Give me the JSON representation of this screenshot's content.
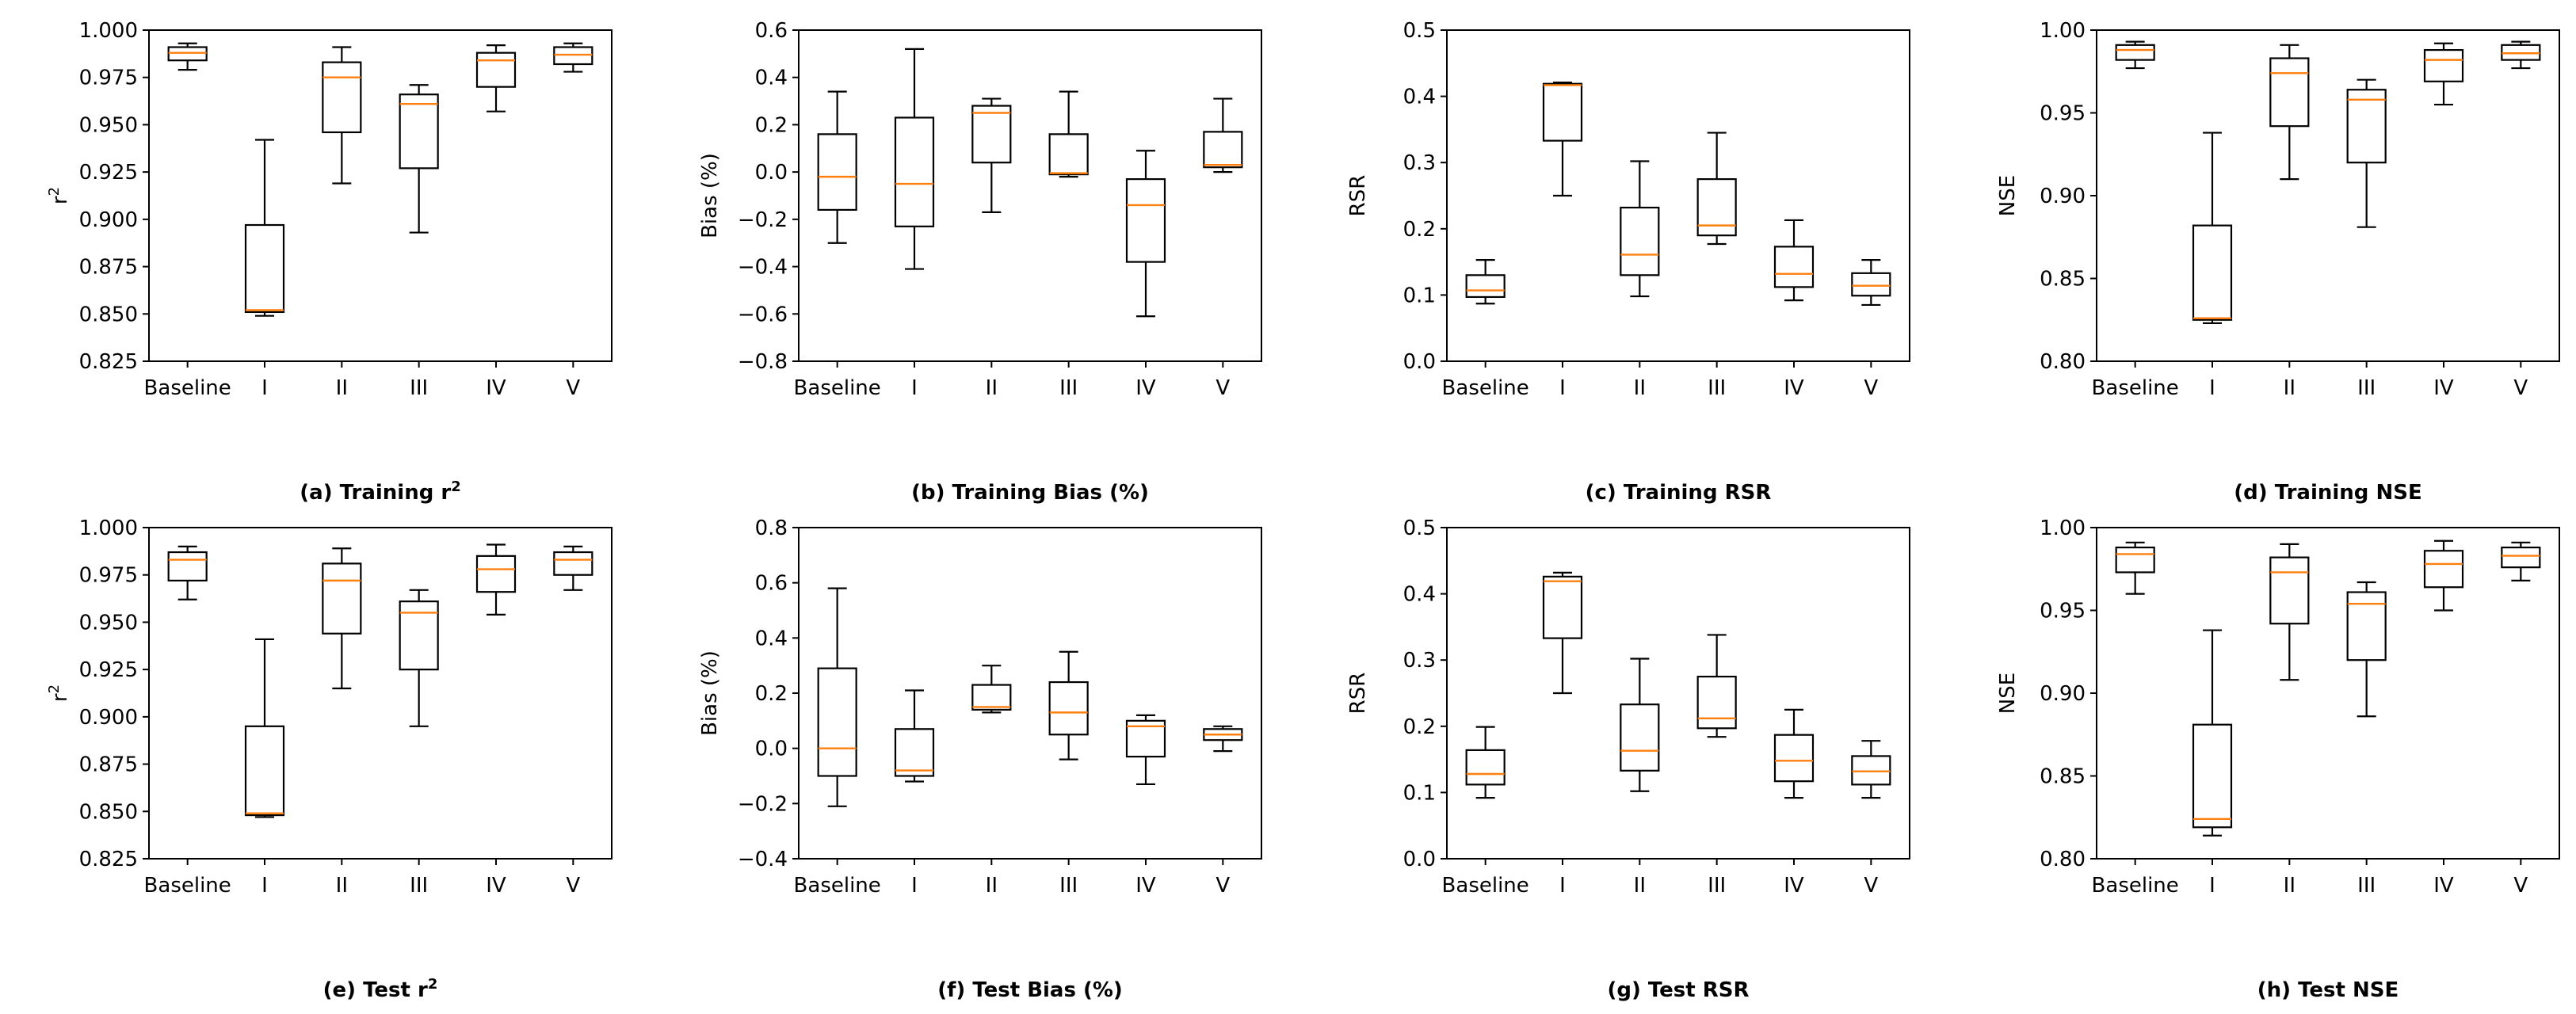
{
  "chart_data": [
    {
      "type": "box",
      "title": "(a) Training r",
      "title_sup": "2",
      "ylabel": "r",
      "ylabel_sup": "2",
      "ylim": [
        0.825,
        1.0
      ],
      "yticks": [
        0.825,
        0.85,
        0.875,
        0.9,
        0.925,
        0.95,
        0.975,
        1.0
      ],
      "ytick_labels": [
        "0.825",
        "0.850",
        "0.875",
        "0.900",
        "0.925",
        "0.950",
        "0.975",
        "1.000"
      ],
      "categories": [
        "Baseline",
        "I",
        "II",
        "III",
        "IV",
        "V"
      ],
      "boxes": [
        {
          "whislo": 0.979,
          "q1": 0.984,
          "med": 0.988,
          "q3": 0.991,
          "whishi": 0.993
        },
        {
          "whislo": 0.849,
          "q1": 0.851,
          "med": 0.852,
          "q3": 0.897,
          "whishi": 0.942
        },
        {
          "whislo": 0.919,
          "q1": 0.946,
          "med": 0.975,
          "q3": 0.983,
          "whishi": 0.991
        },
        {
          "whislo": 0.893,
          "q1": 0.927,
          "med": 0.961,
          "q3": 0.966,
          "whishi": 0.971
        },
        {
          "whislo": 0.957,
          "q1": 0.97,
          "med": 0.984,
          "q3": 0.988,
          "whishi": 0.992
        },
        {
          "whislo": 0.978,
          "q1": 0.982,
          "med": 0.987,
          "q3": 0.991,
          "whishi": 0.993
        }
      ]
    },
    {
      "type": "box",
      "title": "(b) Training Bias (%)",
      "ylabel": "Bias (%)",
      "ylim": [
        -0.8,
        0.6
      ],
      "yticks": [
        -0.8,
        -0.6,
        -0.4,
        -0.2,
        0.0,
        0.2,
        0.4,
        0.6
      ],
      "ytick_labels": [
        "−0.8",
        "−0.6",
        "−0.4",
        "−0.2",
        "0.0",
        "0.2",
        "0.4",
        "0.6"
      ],
      "categories": [
        "Baseline",
        "I",
        "II",
        "III",
        "IV",
        "V"
      ],
      "boxes": [
        {
          "whislo": -0.3,
          "q1": -0.16,
          "med": -0.02,
          "q3": 0.16,
          "whishi": 0.34
        },
        {
          "whislo": -0.41,
          "q1": -0.23,
          "med": -0.05,
          "q3": 0.23,
          "whishi": 0.52
        },
        {
          "whislo": -0.17,
          "q1": 0.04,
          "med": 0.25,
          "q3": 0.28,
          "whishi": 0.31
        },
        {
          "whislo": -0.02,
          "q1": -0.01,
          "med": -0.005,
          "q3": 0.16,
          "whishi": 0.34
        },
        {
          "whislo": -0.61,
          "q1": -0.38,
          "med": -0.14,
          "q3": -0.03,
          "whishi": 0.09
        },
        {
          "whislo": 0.0,
          "q1": 0.02,
          "med": 0.03,
          "q3": 0.17,
          "whishi": 0.31
        }
      ]
    },
    {
      "type": "box",
      "title": "(c) Training RSR",
      "ylabel": "RSR",
      "ylim": [
        0.0,
        0.5
      ],
      "yticks": [
        0.0,
        0.1,
        0.2,
        0.3,
        0.4,
        0.5
      ],
      "ytick_labels": [
        "0.0",
        "0.1",
        "0.2",
        "0.3",
        "0.4",
        "0.5"
      ],
      "categories": [
        "Baseline",
        "I",
        "II",
        "III",
        "IV",
        "V"
      ],
      "boxes": [
        {
          "whislo": 0.087,
          "q1": 0.097,
          "med": 0.107,
          "q3": 0.13,
          "whishi": 0.153
        },
        {
          "whislo": 0.25,
          "q1": 0.333,
          "med": 0.417,
          "q3": 0.419,
          "whishi": 0.421
        },
        {
          "whislo": 0.098,
          "q1": 0.13,
          "med": 0.161,
          "q3": 0.232,
          "whishi": 0.302
        },
        {
          "whislo": 0.177,
          "q1": 0.19,
          "med": 0.205,
          "q3": 0.275,
          "whishi": 0.345
        },
        {
          "whislo": 0.092,
          "q1": 0.112,
          "med": 0.132,
          "q3": 0.173,
          "whishi": 0.213
        },
        {
          "whislo": 0.085,
          "q1": 0.099,
          "med": 0.114,
          "q3": 0.133,
          "whishi": 0.153
        }
      ]
    },
    {
      "type": "box",
      "title": "(d) Training NSE",
      "ylabel": "NSE",
      "ylim": [
        0.8,
        1.0
      ],
      "yticks": [
        0.8,
        0.85,
        0.9,
        0.95,
        1.0
      ],
      "ytick_labels": [
        "0.80",
        "0.85",
        "0.90",
        "0.95",
        "1.00"
      ],
      "categories": [
        "Baseline",
        "I",
        "II",
        "III",
        "IV",
        "V"
      ],
      "boxes": [
        {
          "whislo": 0.977,
          "q1": 0.982,
          "med": 0.988,
          "q3": 0.991,
          "whishi": 0.993
        },
        {
          "whislo": 0.823,
          "q1": 0.825,
          "med": 0.826,
          "q3": 0.882,
          "whishi": 0.938
        },
        {
          "whislo": 0.91,
          "q1": 0.942,
          "med": 0.974,
          "q3": 0.983,
          "whishi": 0.991
        },
        {
          "whislo": 0.881,
          "q1": 0.92,
          "med": 0.958,
          "q3": 0.964,
          "whishi": 0.97
        },
        {
          "whislo": 0.955,
          "q1": 0.969,
          "med": 0.982,
          "q3": 0.988,
          "whishi": 0.992
        },
        {
          "whislo": 0.977,
          "q1": 0.982,
          "med": 0.986,
          "q3": 0.991,
          "whishi": 0.993
        }
      ]
    },
    {
      "type": "box",
      "title": "(e) Test r",
      "title_sup": "2",
      "ylabel": "r",
      "ylabel_sup": "2",
      "ylim": [
        0.825,
        1.0
      ],
      "yticks": [
        0.825,
        0.85,
        0.875,
        0.9,
        0.925,
        0.95,
        0.975,
        1.0
      ],
      "ytick_labels": [
        "0.825",
        "0.850",
        "0.875",
        "0.900",
        "0.925",
        "0.950",
        "0.975",
        "1.000"
      ],
      "categories": [
        "Baseline",
        "I",
        "II",
        "III",
        "IV",
        "V"
      ],
      "boxes": [
        {
          "whislo": 0.962,
          "q1": 0.972,
          "med": 0.983,
          "q3": 0.987,
          "whishi": 0.99
        },
        {
          "whislo": 0.847,
          "q1": 0.848,
          "med": 0.849,
          "q3": 0.895,
          "whishi": 0.941
        },
        {
          "whislo": 0.915,
          "q1": 0.944,
          "med": 0.972,
          "q3": 0.981,
          "whishi": 0.989
        },
        {
          "whislo": 0.895,
          "q1": 0.925,
          "med": 0.955,
          "q3": 0.961,
          "whishi": 0.967
        },
        {
          "whislo": 0.954,
          "q1": 0.966,
          "med": 0.978,
          "q3": 0.985,
          "whishi": 0.991
        },
        {
          "whislo": 0.967,
          "q1": 0.975,
          "med": 0.983,
          "q3": 0.987,
          "whishi": 0.99
        }
      ]
    },
    {
      "type": "box",
      "title": "(f) Test Bias (%)",
      "ylabel": "Bias (%)",
      "ylim": [
        -0.4,
        0.8
      ],
      "yticks": [
        -0.4,
        -0.2,
        0.0,
        0.2,
        0.4,
        0.6,
        0.8
      ],
      "ytick_labels": [
        "−0.4",
        "−0.2",
        "0.0",
        "0.2",
        "0.4",
        "0.6",
        "0.8"
      ],
      "categories": [
        "Baseline",
        "I",
        "II",
        "III",
        "IV",
        "V"
      ],
      "boxes": [
        {
          "whislo": -0.21,
          "q1": -0.1,
          "med": 0.0,
          "q3": 0.29,
          "whishi": 0.58
        },
        {
          "whislo": -0.12,
          "q1": -0.1,
          "med": -0.08,
          "q3": 0.07,
          "whishi": 0.21
        },
        {
          "whislo": 0.13,
          "q1": 0.14,
          "med": 0.15,
          "q3": 0.23,
          "whishi": 0.3
        },
        {
          "whislo": -0.04,
          "q1": 0.05,
          "med": 0.13,
          "q3": 0.24,
          "whishi": 0.35
        },
        {
          "whislo": -0.13,
          "q1": -0.03,
          "med": 0.08,
          "q3": 0.1,
          "whishi": 0.12
        },
        {
          "whislo": -0.01,
          "q1": 0.03,
          "med": 0.05,
          "q3": 0.07,
          "whishi": 0.08
        }
      ]
    },
    {
      "type": "box",
      "title": "(g) Test RSR",
      "ylabel": "RSR",
      "ylim": [
        0.0,
        0.5
      ],
      "yticks": [
        0.0,
        0.1,
        0.2,
        0.3,
        0.4,
        0.5
      ],
      "ytick_labels": [
        "0.0",
        "0.1",
        "0.2",
        "0.3",
        "0.4",
        "0.5"
      ],
      "categories": [
        "Baseline",
        "I",
        "II",
        "III",
        "IV",
        "V"
      ],
      "boxes": [
        {
          "whislo": 0.092,
          "q1": 0.112,
          "med": 0.128,
          "q3": 0.164,
          "whishi": 0.199
        },
        {
          "whislo": 0.25,
          "q1": 0.333,
          "med": 0.419,
          "q3": 0.426,
          "whishi": 0.432
        },
        {
          "whislo": 0.102,
          "q1": 0.133,
          "med": 0.163,
          "q3": 0.233,
          "whishi": 0.302
        },
        {
          "whislo": 0.184,
          "q1": 0.197,
          "med": 0.212,
          "q3": 0.275,
          "whishi": 0.338
        },
        {
          "whislo": 0.092,
          "q1": 0.117,
          "med": 0.148,
          "q3": 0.187,
          "whishi": 0.225
        },
        {
          "whislo": 0.092,
          "q1": 0.112,
          "med": 0.132,
          "q3": 0.155,
          "whishi": 0.178
        }
      ]
    },
    {
      "type": "box",
      "title": "(h) Test NSE",
      "ylabel": "NSE",
      "ylim": [
        0.8,
        1.0
      ],
      "yticks": [
        0.8,
        0.85,
        0.9,
        0.95,
        1.0
      ],
      "ytick_labels": [
        "0.80",
        "0.85",
        "0.90",
        "0.95",
        "1.00"
      ],
      "categories": [
        "Baseline",
        "I",
        "II",
        "III",
        "IV",
        "V"
      ],
      "boxes": [
        {
          "whislo": 0.96,
          "q1": 0.973,
          "med": 0.984,
          "q3": 0.988,
          "whishi": 0.991
        },
        {
          "whislo": 0.814,
          "q1": 0.819,
          "med": 0.824,
          "q3": 0.881,
          "whishi": 0.938
        },
        {
          "whislo": 0.908,
          "q1": 0.942,
          "med": 0.973,
          "q3": 0.982,
          "whishi": 0.99
        },
        {
          "whislo": 0.886,
          "q1": 0.92,
          "med": 0.954,
          "q3": 0.961,
          "whishi": 0.967
        },
        {
          "whislo": 0.95,
          "q1": 0.964,
          "med": 0.978,
          "q3": 0.986,
          "whishi": 0.992
        },
        {
          "whislo": 0.968,
          "q1": 0.976,
          "med": 0.983,
          "q3": 0.988,
          "whishi": 0.991
        }
      ]
    }
  ],
  "colors": {
    "box": "#000000",
    "median": "#ff7f0e",
    "background": "#ffffff"
  }
}
